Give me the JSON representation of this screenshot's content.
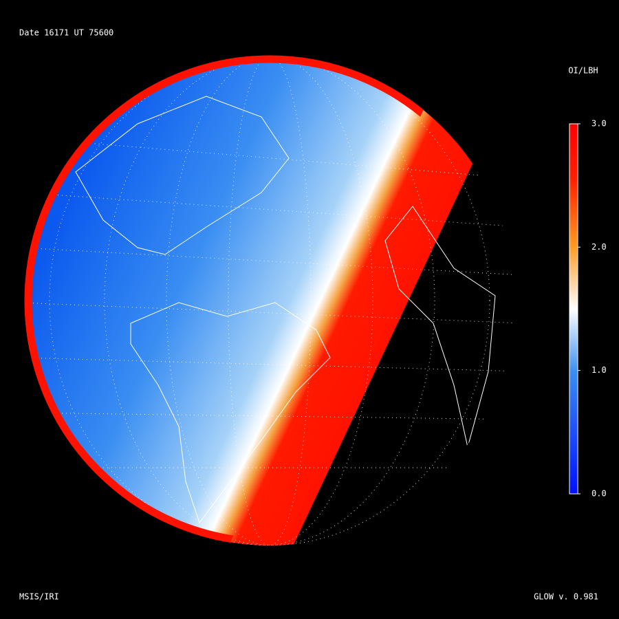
{
  "header": {
    "title": "Date 16171  UT 75600"
  },
  "colorbar": {
    "title": "OI/LBH",
    "clim": [
      0,
      3
    ],
    "ticks": [
      {
        "value": 0,
        "label": "0.0"
      },
      {
        "value": 1,
        "label": "1.0"
      },
      {
        "value": 2,
        "label": "2.0"
      },
      {
        "value": 3,
        "label": "3.0"
      }
    ]
  },
  "footer": {
    "left": "MSIS/IRI",
    "right": "GLOW v. 0.981"
  }
}
